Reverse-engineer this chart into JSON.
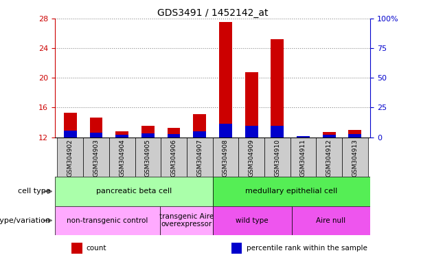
{
  "title": "GDS3491 / 1452142_at",
  "samples": [
    "GSM304902",
    "GSM304903",
    "GSM304904",
    "GSM304905",
    "GSM304906",
    "GSM304907",
    "GSM304908",
    "GSM304909",
    "GSM304910",
    "GSM304911",
    "GSM304912",
    "GSM304913"
  ],
  "count_values": [
    15.3,
    14.7,
    12.8,
    13.5,
    13.3,
    15.1,
    27.5,
    20.8,
    25.2,
    12.2,
    12.7,
    13.0
  ],
  "percentile_values": [
    12.9,
    12.6,
    12.3,
    12.5,
    12.4,
    12.8,
    13.8,
    13.5,
    13.5,
    12.2,
    12.3,
    12.4
  ],
  "ymin": 12,
  "ymax": 28,
  "yticks_left": [
    12,
    16,
    20,
    24,
    28
  ],
  "ytick_labels_left": [
    "12",
    "16",
    "20",
    "24",
    "28"
  ],
  "yticks_right_pos": [
    12,
    16,
    20,
    24,
    28
  ],
  "ytick_labels_right": [
    "0",
    "25",
    "50",
    "75",
    "100%"
  ],
  "bar_width": 0.5,
  "count_color": "#cc0000",
  "percentile_color": "#0000cc",
  "cell_type_groups": [
    {
      "label": "pancreatic beta cell",
      "start": 0,
      "end": 6,
      "color": "#aaffaa"
    },
    {
      "label": "medullary epithelial cell",
      "start": 6,
      "end": 12,
      "color": "#55ee55"
    }
  ],
  "genotype_groups": [
    {
      "label": "non-transgenic control",
      "start": 0,
      "end": 4,
      "color": "#ffaaff"
    },
    {
      "label": "transgenic Aire\noverexpressor",
      "start": 4,
      "end": 6,
      "color": "#ffaaff"
    },
    {
      "label": "wild type",
      "start": 6,
      "end": 9,
      "color": "#ee55ee"
    },
    {
      "label": "Aire null",
      "start": 9,
      "end": 12,
      "color": "#ee55ee"
    }
  ],
  "row_label_cell": "cell type",
  "row_label_geno": "genotype/variation",
  "legend_items": [
    {
      "label": "count",
      "color": "#cc0000"
    },
    {
      "label": "percentile rank within the sample",
      "color": "#0000cc"
    }
  ],
  "left_axis_color": "#cc0000",
  "right_axis_color": "#0000cc",
  "grid_color": "#888888",
  "xticklabel_bg": "#cccccc"
}
